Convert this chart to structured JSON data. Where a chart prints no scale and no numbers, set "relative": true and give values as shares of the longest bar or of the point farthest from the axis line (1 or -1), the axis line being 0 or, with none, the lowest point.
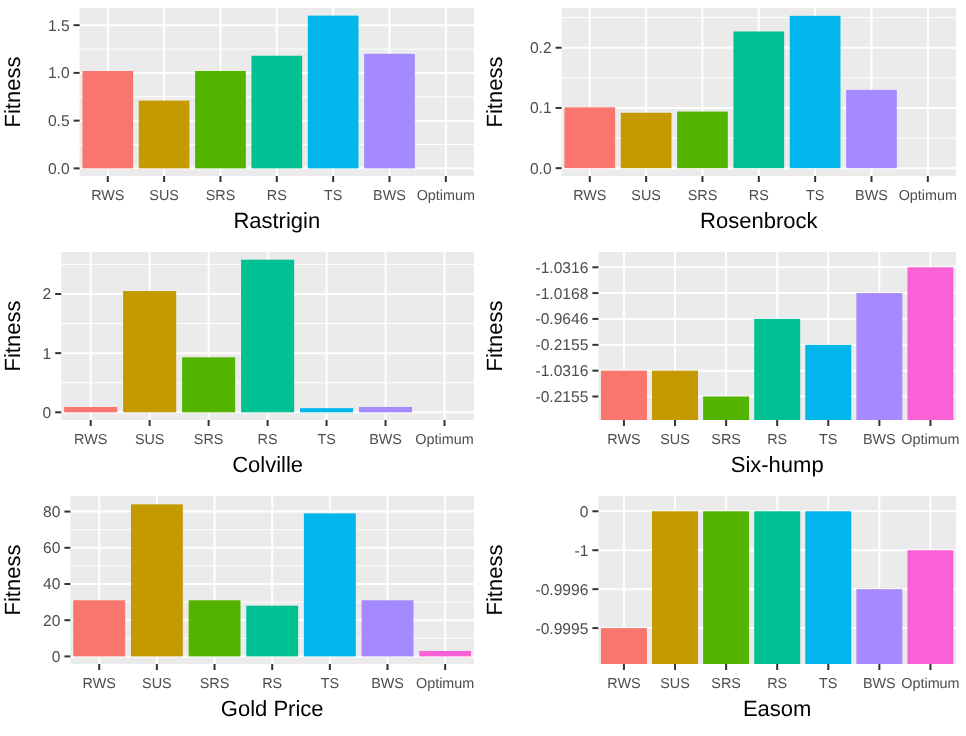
{
  "chart_data": [
    {
      "type": "bar",
      "xlabel": "Rastrigin",
      "ylabel": "Fitness",
      "categories": [
        "RWS",
        "SUS",
        "SRS",
        "RS",
        "TS",
        "BWS",
        "Optimum"
      ],
      "values": [
        1.02,
        0.71,
        1.02,
        1.18,
        1.6,
        1.2,
        0
      ],
      "colors": [
        "#f8766d",
        "#c49a00",
        "#53b400",
        "#00c094",
        "#00b6eb",
        "#a58aff",
        "#fb61d7"
      ],
      "ylim": [
        -0.08,
        1.68
      ],
      "yticks": [
        {
          "value": 0,
          "label": "0.0"
        },
        {
          "value": 0.25,
          "label": null
        },
        {
          "value": 0.5,
          "label": "0.5"
        },
        {
          "value": 0.75,
          "label": null
        },
        {
          "value": 1,
          "label": "1.0"
        },
        {
          "value": 1.25,
          "label": null
        },
        {
          "value": 1.5,
          "label": "1.5"
        }
      ],
      "grid": true
    },
    {
      "type": "bar",
      "xlabel": "Rosenbrock",
      "ylabel": "Fitness",
      "categories": [
        "RWS",
        "SUS",
        "SRS",
        "RS",
        "TS",
        "BWS",
        "Optimum"
      ],
      "values": [
        0.101,
        0.092,
        0.094,
        0.227,
        0.253,
        0.13,
        0
      ],
      "colors": [
        "#f8766d",
        "#c49a00",
        "#53b400",
        "#00c094",
        "#00b6eb",
        "#a58aff",
        "#fb61d7"
      ],
      "ylim": [
        -0.013,
        0.266
      ],
      "yticks": [
        {
          "value": 0,
          "label": "0.0"
        },
        {
          "value": 0.05,
          "label": null
        },
        {
          "value": 0.1,
          "label": "0.1"
        },
        {
          "value": 0.15,
          "label": null
        },
        {
          "value": 0.2,
          "label": "0.2"
        },
        {
          "value": 0.25,
          "label": null
        }
      ],
      "grid": true
    },
    {
      "type": "bar",
      "xlabel": "Colville",
      "ylabel": "Fitness",
      "categories": [
        "RWS",
        "SUS",
        "SRS",
        "RS",
        "TS",
        "BWS",
        "Optimum"
      ],
      "values": [
        0.09,
        2.05,
        0.93,
        2.58,
        0.07,
        0.09,
        0
      ],
      "colors": [
        "#f8766d",
        "#c49a00",
        "#53b400",
        "#00c094",
        "#00b6eb",
        "#a58aff",
        "#fb61d7"
      ],
      "ylim": [
        -0.13,
        2.71
      ],
      "yticks": [
        0,
        {
          "value": 0.5,
          "label": null
        },
        1,
        {
          "value": 1.5,
          "label": null
        },
        2,
        {
          "value": 2.5,
          "label": null
        }
      ],
      "grid": true
    },
    {
      "type": "bar",
      "xlabel": "Six-hump",
      "ylabel": "Fitness",
      "categories": [
        "RWS",
        "SUS",
        "SRS",
        "RS",
        "TS",
        "BWS",
        "Optimum"
      ],
      "relative": true,
      "values": [
        0.323,
        0.323,
        0.154,
        0.662,
        0.492,
        0.831,
        1
      ],
      "colors": [
        "#f8766d",
        "#c49a00",
        "#53b400",
        "#00c094",
        "#00b6eb",
        "#a58aff",
        "#fb61d7"
      ],
      "annotations": [
        "-0.2155",
        "-1.0316",
        "-0.2155",
        "-0.9646",
        "-1.0168",
        "-1.0316"
      ],
      "grid": true
    },
    {
      "type": "bar",
      "xlabel": "Gold Price",
      "ylabel": "Fitness",
      "categories": [
        "RWS",
        "SUS",
        "SRS",
        "RS",
        "TS",
        "BWS",
        "Optimum"
      ],
      "values": [
        31,
        84,
        31,
        28,
        79,
        31,
        3
      ],
      "colors": [
        "#f8766d",
        "#c49a00",
        "#53b400",
        "#00c094",
        "#00b6eb",
        "#a58aff",
        "#fb61d7"
      ],
      "ylim": [
        -4.2,
        88.6
      ],
      "yticks": [
        0,
        {
          "value": 10,
          "label": null
        },
        20,
        {
          "value": 30,
          "label": null
        },
        40,
        {
          "value": 50,
          "label": null
        },
        60,
        {
          "value": 70,
          "label": null
        },
        80
      ],
      "grid": true
    },
    {
      "type": "bar",
      "xlabel": "Easom",
      "ylabel": "Fitness",
      "categories": [
        "RWS",
        "SUS",
        "SRS",
        "RS",
        "TS",
        "BWS",
        "Optimum"
      ],
      "relative": true,
      "values": [
        0.235,
        1,
        1,
        1,
        1,
        0.49,
        0.745
      ],
      "colors": [
        "#f8766d",
        "#c49a00",
        "#53b400",
        "#00c094",
        "#00b6eb",
        "#a58aff",
        "#fb61d7"
      ],
      "annotations": [
        "-0.9995",
        "-0.9996",
        "-1",
        "0"
      ],
      "grid": true
    }
  ]
}
